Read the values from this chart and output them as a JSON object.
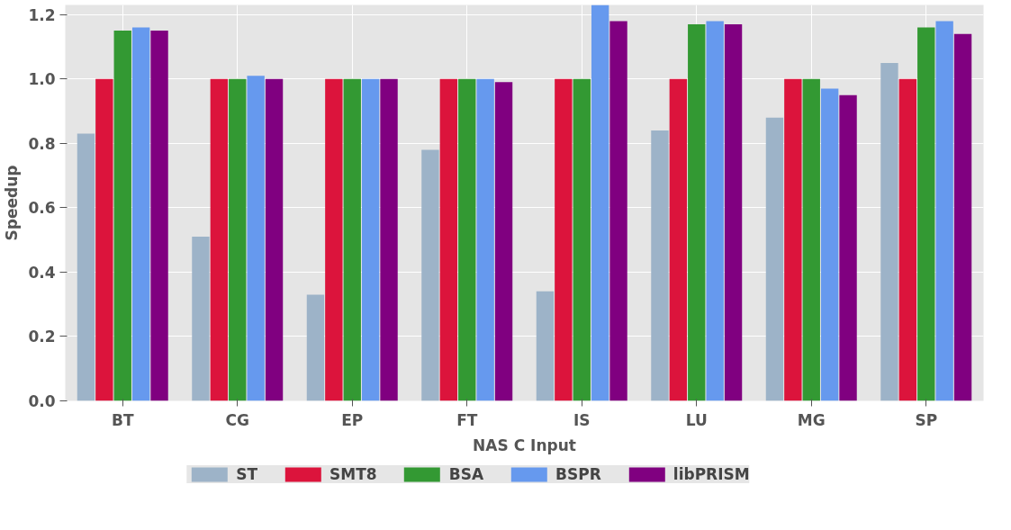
{
  "chart_data": {
    "type": "bar",
    "xlabel": "NAS C Input",
    "ylabel": "Speedup",
    "categories": [
      "BT",
      "CG",
      "EP",
      "FT",
      "IS",
      "LU",
      "MG",
      "SP"
    ],
    "series": [
      {
        "name": "ST",
        "color": "#9db3c8",
        "values": [
          0.83,
          0.51,
          0.33,
          0.78,
          0.34,
          0.84,
          0.88,
          1.05
        ]
      },
      {
        "name": "SMT8",
        "color": "#dc143c",
        "values": [
          1.0,
          1.0,
          1.0,
          1.0,
          1.0,
          1.0,
          1.0,
          1.0
        ]
      },
      {
        "name": "BSA",
        "color": "#339933",
        "values": [
          1.15,
          1.0,
          1.0,
          1.0,
          1.0,
          1.17,
          1.0,
          1.16
        ]
      },
      {
        "name": "BSPR",
        "color": "#6699ee",
        "values": [
          1.16,
          1.01,
          1.0,
          1.0,
          1.23,
          1.18,
          0.97,
          1.18
        ]
      },
      {
        "name": "libPRISM",
        "color": "#800080",
        "values": [
          1.15,
          1.0,
          1.0,
          0.99,
          1.18,
          1.17,
          0.95,
          1.14
        ]
      }
    ],
    "ylim": [
      0,
      1.23
    ],
    "yticks": [
      {
        "value": 0,
        "label": "0.0"
      },
      0.2,
      0.4,
      0.6,
      0.8,
      {
        "value": 1,
        "label": "1.0"
      },
      1.2
    ],
    "grid": true,
    "legend": "bottom"
  }
}
